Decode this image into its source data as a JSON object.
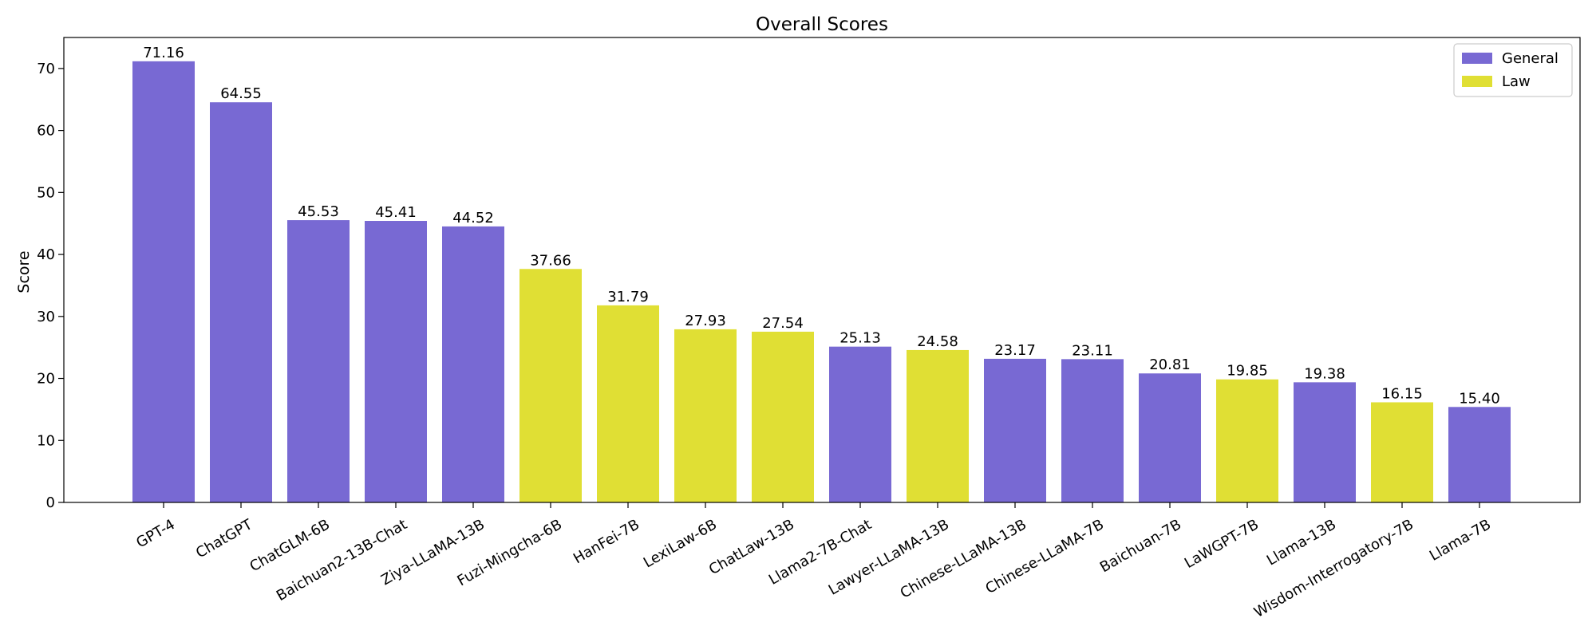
{
  "chart_data": {
    "type": "bar",
    "title": "Overall Scores",
    "xlabel": "",
    "ylabel": "Score",
    "ylim": [
      0,
      75
    ],
    "yticks": [
      0,
      10,
      20,
      30,
      40,
      50,
      60,
      70
    ],
    "grid": false,
    "legend_position": "top-right",
    "categories": [
      "GPT-4",
      "ChatGPT",
      "ChatGLM-6B",
      "Baichuan2-13B-Chat",
      "Ziya-LLaMA-13B",
      "Fuzi-Mingcha-6B",
      "HanFei-7B",
      "LexiLaw-6B",
      "ChatLaw-13B",
      "Llama2-7B-Chat",
      "Lawyer-LLaMA-13B",
      "Chinese-LLaMA-13B",
      "Chinese-LLaMA-7B",
      "Baichuan-7B",
      "LaWGPT-7B",
      "Llama-13B",
      "Wisdom-Interrogatory-7B",
      "Llama-7B"
    ],
    "values": [
      71.16,
      64.55,
      45.53,
      45.41,
      44.52,
      37.66,
      31.79,
      27.93,
      27.54,
      25.13,
      24.58,
      23.17,
      23.11,
      20.81,
      19.85,
      19.38,
      16.15,
      15.4
    ],
    "value_labels": [
      "71.16",
      "64.55",
      "45.53",
      "45.41",
      "44.52",
      "37.66",
      "31.79",
      "27.93",
      "27.54",
      "25.13",
      "24.58",
      "23.17",
      "23.11",
      "20.81",
      "19.85",
      "19.38",
      "16.15",
      "15.40"
    ],
    "groups": [
      "General",
      "General",
      "General",
      "General",
      "General",
      "Law",
      "Law",
      "Law",
      "Law",
      "General",
      "Law",
      "General",
      "General",
      "General",
      "Law",
      "General",
      "Law",
      "General"
    ],
    "series": [
      {
        "name": "General",
        "color": "#7869d3"
      },
      {
        "name": "Law",
        "color": "#e0df34"
      }
    ]
  }
}
